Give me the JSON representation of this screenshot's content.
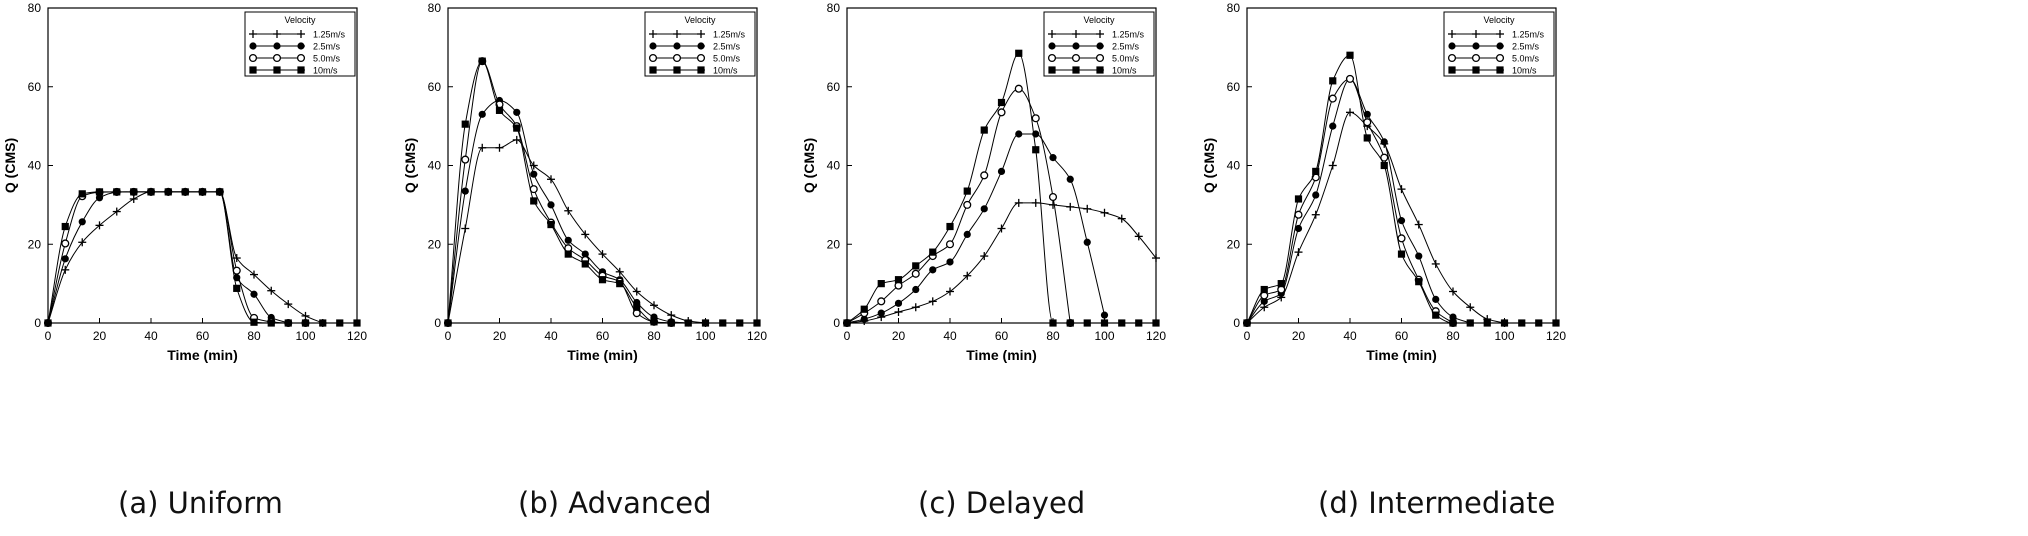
{
  "chart_data": [
    {
      "type": "line",
      "caption": "(a)  Uniform",
      "xlabel": "Time (min)",
      "ylabel": "Q (CMS)",
      "xlim": [
        0,
        120
      ],
      "ylim": [
        0,
        80
      ],
      "xticks": [
        0,
        20,
        40,
        60,
        80,
        100,
        120
      ],
      "yticks": [
        0,
        20,
        40,
        60,
        80
      ],
      "grid": false,
      "legend_title": "Velocity",
      "legend_position": "top-right",
      "series": [
        {
          "name": "1.25m/s",
          "marker": "plus",
          "x": [
            0,
            6.7,
            13.3,
            20,
            26.7,
            33.3,
            40,
            46.7,
            53.3,
            60,
            66.7,
            73.3,
            80,
            86.7,
            93.3,
            100,
            106.7
          ],
          "y": [
            0,
            13.5,
            20.5,
            24.8,
            28.3,
            31.5,
            33.3,
            33.3,
            33.3,
            33.3,
            33.3,
            16.5,
            12.3,
            8.2,
            4.8,
            1.8,
            0
          ]
        },
        {
          "name": "2.5m/s",
          "marker": "filled-circle",
          "x": [
            0,
            6.7,
            13.3,
            20,
            26.7,
            33.3,
            40,
            46.7,
            53.3,
            60,
            66.7,
            73.3,
            80,
            86.7,
            93.3
          ],
          "y": [
            0,
            16.3,
            25.7,
            31.8,
            33.2,
            33.3,
            33.3,
            33.3,
            33.3,
            33.3,
            33.3,
            11.5,
            7.3,
            1.4,
            0
          ]
        },
        {
          "name": "5.0m/s",
          "marker": "open-circle",
          "x": [
            0,
            6.7,
            13.3,
            20,
            26.7,
            33.3,
            40,
            46.7,
            53.3,
            60,
            66.7,
            73.3,
            80,
            86.7,
            93.3,
            100
          ],
          "y": [
            0,
            20.2,
            32.2,
            33.2,
            33.3,
            33.3,
            33.3,
            33.3,
            33.3,
            33.3,
            33.3,
            13.3,
            1.3,
            0.3,
            0,
            0
          ]
        },
        {
          "name": "10m/s",
          "marker": "filled-square",
          "x": [
            0,
            6.7,
            13.3,
            20,
            26.7,
            33.3,
            40,
            46.7,
            53.3,
            60,
            66.7,
            73.3,
            80,
            86.7,
            93.3,
            100,
            106.7,
            113.3,
            120
          ],
          "y": [
            0,
            24.5,
            32.8,
            33.3,
            33.3,
            33.3,
            33.3,
            33.3,
            33.3,
            33.3,
            33.3,
            8.8,
            0.2,
            0,
            0,
            0,
            0,
            0,
            0
          ]
        }
      ]
    },
    {
      "type": "line",
      "caption": "(b)  Advanced",
      "xlabel": "Time (min)",
      "ylabel": "Q (CMS)",
      "xlim": [
        0,
        120
      ],
      "ylim": [
        0,
        80
      ],
      "xticks": [
        0,
        20,
        40,
        60,
        80,
        100,
        120
      ],
      "yticks": [
        0,
        20,
        40,
        60,
        80
      ],
      "grid": false,
      "legend_title": "Velocity",
      "legend_position": "top-right",
      "series": [
        {
          "name": "1.25m/s",
          "marker": "plus",
          "x": [
            0,
            6.7,
            13.3,
            20,
            26.7,
            33.3,
            40,
            46.7,
            53.3,
            60,
            66.7,
            73.3,
            80,
            86.7,
            93.3,
            100
          ],
          "y": [
            0,
            24,
            44.5,
            44.5,
            46.5,
            40,
            36.5,
            28.5,
            22.5,
            17.5,
            13,
            8,
            4.5,
            2,
            0.5,
            0
          ]
        },
        {
          "name": "2.5m/s",
          "marker": "filled-circle",
          "x": [
            0,
            6.7,
            13.3,
            20,
            26.7,
            33.3,
            40,
            46.7,
            53.3,
            60,
            66.7,
            73.3,
            80,
            86.7,
            93.3
          ],
          "y": [
            0,
            33.5,
            53,
            56.5,
            53.5,
            37.8,
            30,
            21,
            17.5,
            13,
            11,
            5.2,
            1.5,
            0.3,
            0
          ]
        },
        {
          "name": "5.0m/s",
          "marker": "open-circle",
          "x": [
            0,
            6.7,
            13.3,
            20,
            26.7,
            33.3,
            40,
            46.7,
            53.3,
            60,
            66.7,
            73.3,
            80,
            86.7
          ],
          "y": [
            0,
            41.5,
            66.5,
            55.5,
            50,
            34,
            25.5,
            19,
            16,
            12,
            10.5,
            2.5,
            0.3,
            0
          ]
        },
        {
          "name": "10m/s",
          "marker": "filled-square",
          "x": [
            0,
            6.7,
            13.3,
            20,
            26.7,
            33.3,
            40,
            46.7,
            53.3,
            60,
            66.7,
            73.3,
            80,
            86.7,
            93.3,
            100,
            106.7,
            113.3,
            120
          ],
          "y": [
            0,
            50.5,
            66.5,
            54,
            49.5,
            31,
            25,
            17.5,
            15,
            11,
            10,
            4,
            0.3,
            0,
            0,
            0,
            0,
            0,
            0
          ]
        }
      ]
    },
    {
      "type": "line",
      "caption": "(c)  Delayed",
      "xlabel": "Time (min)",
      "ylabel": "Q (CMS)",
      "xlim": [
        0,
        120
      ],
      "ylim": [
        0,
        80
      ],
      "xticks": [
        0,
        20,
        40,
        60,
        80,
        100,
        120
      ],
      "yticks": [
        0,
        20,
        40,
        60,
        80
      ],
      "grid": false,
      "legend_title": "Velocity",
      "legend_position": "top-right",
      "series": [
        {
          "name": "1.25m/s",
          "marker": "plus",
          "x": [
            0,
            6.7,
            13.3,
            20,
            26.7,
            33.3,
            40,
            46.7,
            53.3,
            60,
            66.7,
            73.3,
            80,
            86.7,
            93.3,
            100,
            106.7,
            113.3,
            120
          ],
          "y": [
            0,
            0.5,
            1.5,
            2.8,
            4,
            5.5,
            8,
            12,
            17,
            24,
            30.5,
            30.5,
            30,
            29.5,
            29,
            28,
            26.5,
            22,
            16.5
          ]
        },
        {
          "name": "2.5m/s",
          "marker": "filled-circle",
          "x": [
            0,
            6.7,
            13.3,
            20,
            26.7,
            33.3,
            40,
            46.7,
            53.3,
            60,
            66.7,
            73.3,
            80,
            86.7,
            93.3,
            100
          ],
          "y": [
            0,
            1,
            2.5,
            5,
            8.5,
            13.5,
            15.5,
            22.5,
            29,
            38.5,
            48,
            48,
            42,
            36.5,
            20.5,
            2
          ]
        },
        {
          "name": "5.0m/s",
          "marker": "open-circle",
          "x": [
            0,
            6.7,
            13.3,
            20,
            26.7,
            33.3,
            40,
            46.7,
            53.3,
            60,
            66.7,
            73.3,
            80,
            86.7
          ],
          "y": [
            0,
            2.5,
            5.5,
            9.5,
            12.5,
            17,
            20,
            30,
            37.5,
            53.5,
            59.5,
            52,
            32,
            0
          ]
        },
        {
          "name": "10m/s",
          "marker": "filled-square",
          "x": [
            0,
            6.7,
            13.3,
            20,
            26.7,
            33.3,
            40,
            46.7,
            53.3,
            60,
            66.7,
            73.3,
            80,
            86.7,
            93.3,
            100,
            106.7,
            113.3,
            120
          ],
          "y": [
            0,
            3.5,
            10,
            11,
            14.5,
            18,
            24.5,
            33.5,
            49,
            56,
            68.5,
            44,
            0,
            0,
            0,
            0,
            0,
            0,
            0
          ]
        }
      ]
    },
    {
      "type": "line",
      "caption": "(d)  Intermediate",
      "xlabel": "Time (min)",
      "ylabel": "Q (CMS)",
      "xlim": [
        0,
        120
      ],
      "ylim": [
        0,
        80
      ],
      "xticks": [
        0,
        20,
        40,
        60,
        80,
        100,
        120
      ],
      "yticks": [
        0,
        20,
        40,
        60,
        80
      ],
      "grid": false,
      "legend_title": "Velocity",
      "legend_position": "top-right",
      "series": [
        {
          "name": "1.25m/s",
          "marker": "plus",
          "x": [
            0,
            6.7,
            13.3,
            20,
            26.7,
            33.3,
            40,
            46.7,
            53.3,
            60,
            66.7,
            73.3,
            80,
            86.7,
            93.3,
            100
          ],
          "y": [
            0,
            4,
            6.5,
            18,
            27.5,
            40,
            53.5,
            50,
            45.5,
            34,
            25,
            15,
            8,
            4,
            1,
            0
          ]
        },
        {
          "name": "2.5m/s",
          "marker": "filled-circle",
          "x": [
            0,
            6.7,
            13.3,
            20,
            26.7,
            33.3,
            40,
            46.7,
            53.3,
            60,
            66.7,
            73.3,
            80,
            86.7
          ],
          "y": [
            0,
            5.5,
            7.5,
            24,
            32.5,
            50,
            62,
            53,
            46,
            26,
            17,
            6,
            1.5,
            0
          ]
        },
        {
          "name": "5.0m/s",
          "marker": "open-circle",
          "x": [
            0,
            6.7,
            13.3,
            20,
            26.7,
            33.3,
            40,
            46.7,
            53.3,
            60,
            66.7,
            73.3,
            80
          ],
          "y": [
            0,
            7,
            8.5,
            27.5,
            37,
            57,
            62,
            51,
            42,
            21.5,
            11,
            3,
            0
          ]
        },
        {
          "name": "10m/s",
          "marker": "filled-square",
          "x": [
            0,
            6.7,
            13.3,
            20,
            26.7,
            33.3,
            40,
            46.7,
            53.3,
            60,
            66.7,
            73.3,
            80,
            86.7,
            93.3,
            100,
            106.7,
            113.3,
            120
          ],
          "y": [
            0,
            8.5,
            10,
            31.5,
            38.5,
            61.5,
            68,
            47,
            40,
            17.5,
            10.5,
            2,
            0,
            0,
            0,
            0,
            0,
            0,
            0
          ]
        }
      ]
    }
  ]
}
